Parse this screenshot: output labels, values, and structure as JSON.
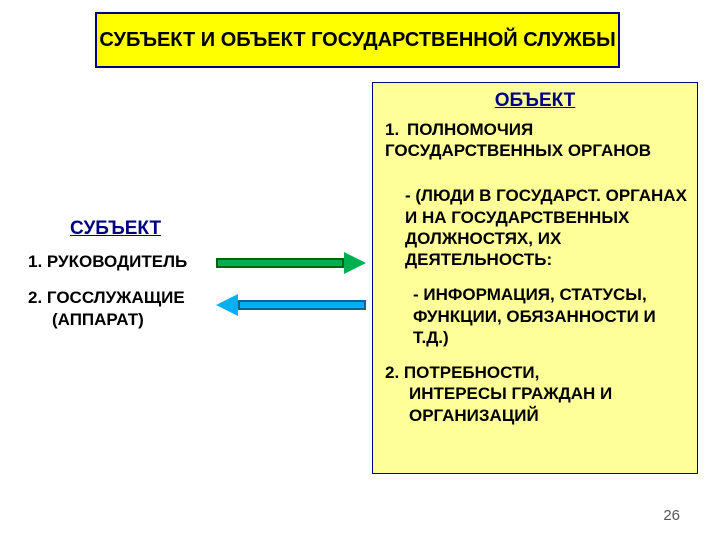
{
  "colors": {
    "title_bg": "#ffff00",
    "title_border": "#000080",
    "object_bg": "#ffff99",
    "object_border": "#000080",
    "text_black": "#000000",
    "text_navy": "#000080",
    "arrow1_fill": "#00b050",
    "arrow1_border": "#006600",
    "arrow2_fill": "#00b0f0",
    "arrow2_border": "#006699",
    "page_num_color": "#555555"
  },
  "fonts": {
    "title_size": 20,
    "heading_size": 19,
    "body_size": 17
  },
  "title": "СУБЪЕКТ И ОБЪЕКТ ГОСУДАРСТВЕННОЙ СЛУЖБЫ",
  "subject": {
    "heading": "СУБЪЕКТ",
    "item1": "1.  РУКОВОДИТЕЛЬ",
    "item2": "2.  ГОССЛУЖАЩИЕ",
    "item2b": "(АППАРАТ)"
  },
  "object": {
    "heading": "ОБЪЕКТ",
    "item1_num": "1.",
    "item1_text": "ПОЛНОМОЧИЯ ГОСУДАРСТВЕННЫХ ОРГАНОВ",
    "sub1": "- (ЛЮДИ В ГОСУДАРСТ. ОРГАНАХ И НА ГОСУДАРСТВЕННЫХ ДОЛЖНОСТЯХ, ИХ ДЕЯТЕЛЬНОСТЬ:",
    "sub2": "- ИНФОРМАЦИЯ, СТАТУСЫ, ФУНКЦИИ, ОБЯЗАННОСТИ И Т.Д.)",
    "item2": "2. ПОТРЕБНОСТИ, ",
    "item2b": "ИНТЕРЕСЫ ГРАЖДАН И ОРГАНИЗАЦИЙ"
  },
  "page_number": "26"
}
